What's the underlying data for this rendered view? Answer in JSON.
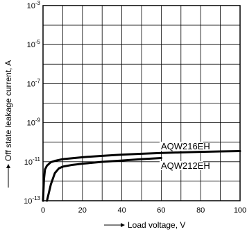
{
  "chart_data": {
    "type": "line",
    "xlabel": "Load voltage, V",
    "ylabel": "Off state leakage current, A",
    "xlim": [
      0,
      100
    ],
    "ylim_exponent": [
      -13,
      -3
    ],
    "y_scale": "log",
    "grid": true,
    "x_ticks": [
      "0",
      "20",
      "40",
      "60",
      "80",
      "100"
    ],
    "x_tick_values": [
      0,
      20,
      40,
      60,
      80,
      100
    ],
    "y_ticks": [
      {
        "base": "10",
        "exp": "-3",
        "value": 0.001
      },
      {
        "base": "10",
        "exp": "-5",
        "value": 1e-05
      },
      {
        "base": "10",
        "exp": "-7",
        "value": 1e-07
      },
      {
        "base": "10",
        "exp": "-9",
        "value": 1e-09
      },
      {
        "base": "10",
        "exp": "-11",
        "value": 1e-11
      },
      {
        "base": "10",
        "exp": "-13",
        "value": 1e-13
      }
    ],
    "series": [
      {
        "name": "AQW216EH",
        "points": [
          [
            0,
            1e-13
          ],
          [
            0.5,
            1.3e-12
          ],
          [
            1,
            4e-12
          ],
          [
            2,
            6.3e-12
          ],
          [
            4,
            9.5e-12
          ],
          [
            6,
            1.1e-11
          ],
          [
            10,
            1.35e-11
          ],
          [
            20,
            1.7e-11
          ],
          [
            30,
            2e-11
          ],
          [
            40,
            2.3e-11
          ],
          [
            50,
            2.55e-11
          ],
          [
            60,
            2.8e-11
          ],
          [
            70,
            3e-11
          ],
          [
            80,
            3.2e-11
          ],
          [
            90,
            3.35e-11
          ],
          [
            100,
            3.5e-11
          ]
        ]
      },
      {
        "name": "AQW212EH",
        "points": [
          [
            2,
            1e-13
          ],
          [
            4,
            7e-13
          ],
          [
            6,
            2.6e-12
          ],
          [
            8,
            4.5e-12
          ],
          [
            10,
            5.6e-12
          ],
          [
            15,
            6.9e-12
          ],
          [
            20,
            7.9e-12
          ],
          [
            30,
            9.8e-12
          ],
          [
            40,
            1.15e-11
          ],
          [
            50,
            1.35e-11
          ],
          [
            60,
            1.55e-11
          ]
        ]
      }
    ]
  }
}
